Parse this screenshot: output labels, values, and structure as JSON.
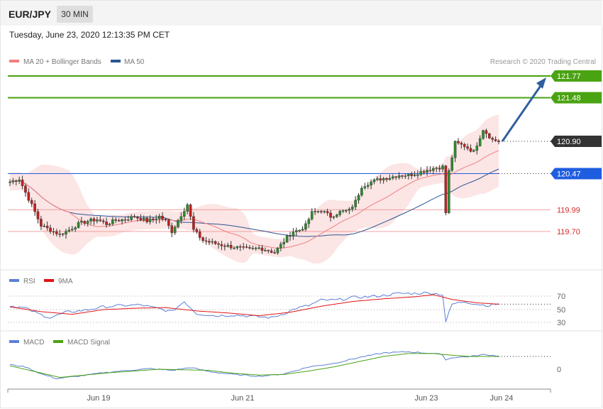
{
  "header": {
    "symbol": "EUR/JPY",
    "timeframe": "30 MIN",
    "datetime": "Tuesday, June 23, 2020 12:13:35 PM CET"
  },
  "main_panel": {
    "legend": [
      {
        "label": "MA 20 + Bollinger Bands",
        "color": "#f08080"
      },
      {
        "label": "MA 50",
        "color": "#2a5592"
      }
    ],
    "credit": "Research © 2020 Trading Central",
    "levels": [
      {
        "value": "121.77",
        "price": 121.77,
        "kind": "target",
        "color": "#4aa312"
      },
      {
        "value": "121.48",
        "price": 121.48,
        "kind": "target",
        "color": "#4aa312"
      },
      {
        "value": "120.90",
        "price": 120.9,
        "kind": "last",
        "color": "#333333"
      },
      {
        "value": "120.47",
        "price": 120.47,
        "kind": "pivot",
        "color": "#1f5de0"
      },
      {
        "value": "119.99",
        "price": 119.99,
        "kind": "support",
        "color": "#d52b2b"
      },
      {
        "value": "119.70",
        "price": 119.7,
        "kind": "support",
        "color": "#d52b2b"
      }
    ]
  },
  "rsi_panel": {
    "legend": [
      {
        "label": "RSI",
        "color": "#5b7fd6"
      },
      {
        "label": "9MA",
        "color": "#e01414"
      }
    ],
    "levels": [
      "70",
      "50",
      "30"
    ]
  },
  "macd_panel": {
    "legend": [
      {
        "label": "MACD",
        "color": "#5b7fd6"
      },
      {
        "label": "MACD Signal",
        "color": "#4aa312"
      }
    ],
    "zero_label": "0"
  },
  "x_axis": {
    "ticks": [
      "Jun 19",
      "Jun 21",
      "Jun 23",
      "Jun 24"
    ]
  },
  "chart_data": {
    "type": "candlestick",
    "title": "EUR/JPY",
    "timeframe": "30 MIN",
    "ylim": [
      119.3,
      121.95
    ],
    "x_ticks": [
      "Jun 19",
      "Jun 21",
      "Jun 23",
      "Jun 24"
    ],
    "price_path": [
      [
        0,
        120.36
      ],
      [
        3,
        120.4
      ],
      [
        5,
        120.22
      ],
      [
        7,
        120.05
      ],
      [
        10,
        119.78
      ],
      [
        13,
        119.72
      ],
      [
        16,
        119.66
      ],
      [
        19,
        119.72
      ],
      [
        22,
        119.8
      ],
      [
        25,
        119.84
      ],
      [
        28,
        119.86
      ],
      [
        31,
        119.8
      ],
      [
        34,
        119.85
      ],
      [
        37,
        119.86
      ],
      [
        40,
        119.9
      ],
      [
        42,
        119.87
      ],
      [
        44,
        119.84
      ],
      [
        46,
        119.86
      ],
      [
        48,
        119.9
      ],
      [
        50,
        119.84
      ],
      [
        52,
        119.7
      ],
      [
        55,
        119.92
      ],
      [
        57,
        120.06
      ],
      [
        59,
        119.72
      ],
      [
        62,
        119.58
      ],
      [
        65,
        119.55
      ],
      [
        68,
        119.52
      ],
      [
        71,
        119.5
      ],
      [
        74,
        119.48
      ],
      [
        77,
        119.46
      ],
      [
        80,
        119.48
      ],
      [
        83,
        119.45
      ],
      [
        85,
        119.42
      ],
      [
        87,
        119.52
      ],
      [
        89,
        119.62
      ],
      [
        91,
        119.7
      ],
      [
        93,
        119.72
      ],
      [
        95,
        119.78
      ],
      [
        97,
        119.95
      ],
      [
        100,
        119.98
      ],
      [
        103,
        119.9
      ],
      [
        106,
        119.96
      ],
      [
        109,
        119.98
      ],
      [
        111,
        120.1
      ],
      [
        113,
        120.3
      ],
      [
        116,
        120.36
      ],
      [
        119,
        120.4
      ],
      [
        122,
        120.42
      ],
      [
        125,
        120.45
      ],
      [
        128,
        120.45
      ],
      [
        131,
        120.48
      ],
      [
        134,
        120.52
      ],
      [
        137,
        120.55
      ],
      [
        139,
        120.56
      ],
      [
        140,
        119.95
      ],
      [
        141,
        120.5
      ],
      [
        143,
        120.88
      ],
      [
        146,
        120.84
      ],
      [
        149,
        120.76
      ],
      [
        152,
        121.06
      ],
      [
        155,
        120.92
      ],
      [
        157,
        120.9
      ]
    ],
    "rsi": [
      [
        0,
        56
      ],
      [
        5,
        52
      ],
      [
        9,
        44
      ],
      [
        13,
        38
      ],
      [
        18,
        46
      ],
      [
        24,
        49
      ],
      [
        30,
        54
      ],
      [
        36,
        56
      ],
      [
        42,
        57
      ],
      [
        48,
        51
      ],
      [
        52,
        47
      ],
      [
        56,
        62
      ],
      [
        60,
        44
      ],
      [
        66,
        41
      ],
      [
        72,
        42
      ],
      [
        78,
        40
      ],
      [
        84,
        38
      ],
      [
        88,
        44
      ],
      [
        92,
        52
      ],
      [
        96,
        56
      ],
      [
        100,
        64
      ],
      [
        105,
        64
      ],
      [
        110,
        68
      ],
      [
        115,
        69
      ],
      [
        120,
        71
      ],
      [
        125,
        74
      ],
      [
        130,
        74
      ],
      [
        135,
        75
      ],
      [
        139,
        72
      ],
      [
        140,
        32
      ],
      [
        142,
        58
      ],
      [
        146,
        62
      ],
      [
        150,
        58
      ],
      [
        154,
        56
      ],
      [
        157,
        59
      ]
    ],
    "rsi_ma": [
      [
        0,
        54
      ],
      [
        10,
        47
      ],
      [
        20,
        43
      ],
      [
        30,
        50
      ],
      [
        40,
        52
      ],
      [
        50,
        53
      ],
      [
        60,
        48
      ],
      [
        70,
        45
      ],
      [
        80,
        41
      ],
      [
        90,
        46
      ],
      [
        100,
        55
      ],
      [
        110,
        62
      ],
      [
        120,
        66
      ],
      [
        130,
        69
      ],
      [
        136,
        72
      ],
      [
        142,
        65
      ],
      [
        150,
        60
      ],
      [
        157,
        58
      ]
    ],
    "macd": [
      [
        0,
        0.08
      ],
      [
        5,
        0.04
      ],
      [
        10,
        -0.08
      ],
      [
        15,
        -0.16
      ],
      [
        22,
        -0.12
      ],
      [
        30,
        -0.06
      ],
      [
        38,
        -0.02
      ],
      [
        45,
        0.01
      ],
      [
        52,
        -0.02
      ],
      [
        58,
        0.03
      ],
      [
        64,
        -0.04
      ],
      [
        72,
        -0.09
      ],
      [
        80,
        -0.12
      ],
      [
        88,
        -0.08
      ],
      [
        96,
        0.04
      ],
      [
        104,
        0.1
      ],
      [
        112,
        0.2
      ],
      [
        120,
        0.28
      ],
      [
        128,
        0.3
      ],
      [
        136,
        0.27
      ],
      [
        139,
        0.25
      ],
      [
        140,
        0.16
      ],
      [
        142,
        0.2
      ],
      [
        148,
        0.22
      ],
      [
        152,
        0.25
      ],
      [
        157,
        0.23
      ]
    ],
    "macd_signal": [
      [
        0,
        0.06
      ],
      [
        8,
        -0.04
      ],
      [
        16,
        -0.14
      ],
      [
        24,
        -0.1
      ],
      [
        32,
        -0.06
      ],
      [
        40,
        -0.03
      ],
      [
        48,
        0.0
      ],
      [
        56,
        -0.01
      ],
      [
        64,
        -0.02
      ],
      [
        72,
        -0.07
      ],
      [
        80,
        -0.1
      ],
      [
        88,
        -0.09
      ],
      [
        96,
        -0.03
      ],
      [
        104,
        0.04
      ],
      [
        112,
        0.13
      ],
      [
        120,
        0.22
      ],
      [
        128,
        0.27
      ],
      [
        136,
        0.27
      ],
      [
        142,
        0.24
      ],
      [
        148,
        0.22
      ],
      [
        157,
        0.22
      ]
    ]
  }
}
